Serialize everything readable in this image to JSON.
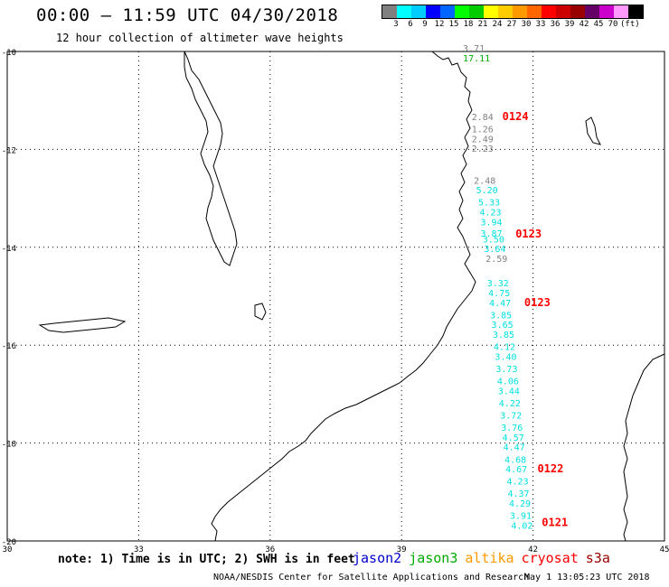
{
  "header": {
    "title": "00:00 – 11:59 UTC 04/30/2018",
    "subtitle": "12 hour collection of altimeter wave heights"
  },
  "scale": {
    "colors": [
      "#808080",
      "#00ffff",
      "#00ccff",
      "#0000ff",
      "#0066ff",
      "#00ff00",
      "#00cc00",
      "#ffff00",
      "#ffcc00",
      "#ff9900",
      "#ff6600",
      "#ff0000",
      "#cc0000",
      "#990000",
      "#660066",
      "#cc00cc",
      "#ff99ff",
      "#000000"
    ],
    "labels": [
      "3",
      "6",
      "9",
      "12",
      "15",
      "18",
      "21",
      "24",
      "27",
      "30",
      "33",
      "36",
      "39",
      "42",
      "45",
      "70",
      "(ft)"
    ]
  },
  "map": {
    "lon_ticks": [
      "30",
      "33",
      "36",
      "39",
      "42",
      "45"
    ],
    "lat_ticks": [
      "-10",
      "-12",
      "-14",
      "-16",
      "-18",
      "-20"
    ],
    "pass_labels": [
      {
        "id": "0124",
        "color": "#ff0000",
        "lon": 41.3,
        "lat": -11.4
      },
      {
        "id": "0123",
        "color": "#ff0000",
        "lon": 41.6,
        "lat": -13.8
      },
      {
        "id": "0123",
        "color": "#ff0000",
        "lon": 41.8,
        "lat": -15.2
      },
      {
        "id": "0122",
        "color": "#ff0000",
        "lon": 42.1,
        "lat": -18.6
      },
      {
        "id": "0121",
        "color": "#ff0000",
        "lon": 42.2,
        "lat": -19.7
      }
    ],
    "observations": [
      {
        "v": "3.71",
        "c": "#808080",
        "lon": 40.4,
        "lat": -10.0
      },
      {
        "v": "17.11",
        "c": "#00aa00",
        "lon": 40.4,
        "lat": -10.2
      },
      {
        "v": "2.84",
        "c": "#808080",
        "lon": 40.6,
        "lat": -11.4
      },
      {
        "v": "1.26",
        "c": "#808080",
        "lon": 40.6,
        "lat": -11.65
      },
      {
        "v": "2.49",
        "c": "#808080",
        "lon": 40.6,
        "lat": -11.85
      },
      {
        "v": "2.23",
        "c": "#808080",
        "lon": 40.6,
        "lat": -12.05
      },
      {
        "v": "2.48",
        "c": "#808080",
        "lon": 40.65,
        "lat": -12.7
      },
      {
        "v": "5.20",
        "c": "#00e0e0",
        "lon": 40.7,
        "lat": -12.9
      },
      {
        "v": "5.33",
        "c": "#00e0e0",
        "lon": 40.75,
        "lat": -13.15
      },
      {
        "v": "4.23",
        "c": "#00e0e0",
        "lon": 40.78,
        "lat": -13.35
      },
      {
        "v": "3.94",
        "c": "#00e0e0",
        "lon": 40.8,
        "lat": -13.55
      },
      {
        "v": "3.87",
        "c": "#00e0e0",
        "lon": 40.8,
        "lat": -13.78
      },
      {
        "v": "3.50",
        "c": "#00e0e0",
        "lon": 40.85,
        "lat": -13.9
      },
      {
        "v": "3.64",
        "c": "#00e0e0",
        "lon": 40.88,
        "lat": -14.1
      },
      {
        "v": "2.59",
        "c": "#808080",
        "lon": 40.92,
        "lat": -14.3
      },
      {
        "v": "3.32",
        "c": "#00e0e0",
        "lon": 40.95,
        "lat": -14.8
      },
      {
        "v": "4.75",
        "c": "#00e0e0",
        "lon": 40.98,
        "lat": -15.0
      },
      {
        "v": "4.47",
        "c": "#00e0e0",
        "lon": 41.0,
        "lat": -15.2
      },
      {
        "v": "3.85",
        "c": "#00e0e0",
        "lon": 41.02,
        "lat": -15.45
      },
      {
        "v": "3.65",
        "c": "#00e0e0",
        "lon": 41.05,
        "lat": -15.65
      },
      {
        "v": "3.85",
        "c": "#00e0e0",
        "lon": 41.08,
        "lat": -15.85
      },
      {
        "v": "4.12",
        "c": "#00e0e0",
        "lon": 41.1,
        "lat": -16.1
      },
      {
        "v": "3.40",
        "c": "#00e0e0",
        "lon": 41.13,
        "lat": -16.3
      },
      {
        "v": "3.73",
        "c": "#00e0e0",
        "lon": 41.15,
        "lat": -16.55
      },
      {
        "v": "4.06",
        "c": "#00e0e0",
        "lon": 41.18,
        "lat": -16.8
      },
      {
        "v": "3.44",
        "c": "#00e0e0",
        "lon": 41.2,
        "lat": -17.0
      },
      {
        "v": "4.22",
        "c": "#00e0e0",
        "lon": 41.22,
        "lat": -17.25
      },
      {
        "v": "3.72",
        "c": "#00e0e0",
        "lon": 41.25,
        "lat": -17.5
      },
      {
        "v": "3.76",
        "c": "#00e0e0",
        "lon": 41.27,
        "lat": -17.75
      },
      {
        "v": "4.57",
        "c": "#00e0e0",
        "lon": 41.3,
        "lat": -17.95
      },
      {
        "v": "4.47",
        "c": "#00e0e0",
        "lon": 41.32,
        "lat": -18.15
      },
      {
        "v": "4.68",
        "c": "#00e0e0",
        "lon": 41.35,
        "lat": -18.4
      },
      {
        "v": "4.67",
        "c": "#00e0e0",
        "lon": 41.37,
        "lat": -18.6
      },
      {
        "v": "4.23",
        "c": "#00e0e0",
        "lon": 41.4,
        "lat": -18.85
      },
      {
        "v": "4.37",
        "c": "#00e0e0",
        "lon": 41.42,
        "lat": -19.1
      },
      {
        "v": "4.29",
        "c": "#00e0e0",
        "lon": 41.45,
        "lat": -19.3
      },
      {
        "v": "3.91",
        "c": "#00e0e0",
        "lon": 41.47,
        "lat": -19.55
      },
      {
        "v": "4.02",
        "c": "#00e0e0",
        "lon": 41.5,
        "lat": -19.75
      }
    ]
  },
  "footer": {
    "note": "note: 1) Time is in UTC; 2) SWH is in feet",
    "legend": {
      "jason2": "jason2",
      "jason3": "jason3",
      "altika": "altika",
      "cryosat": "cryosat",
      "s3a": "s3a"
    },
    "credit": "NOAA/NESDIS Center for Satellite Applications and Research",
    "date": "May  1 13:05:23 UTC 2018"
  }
}
